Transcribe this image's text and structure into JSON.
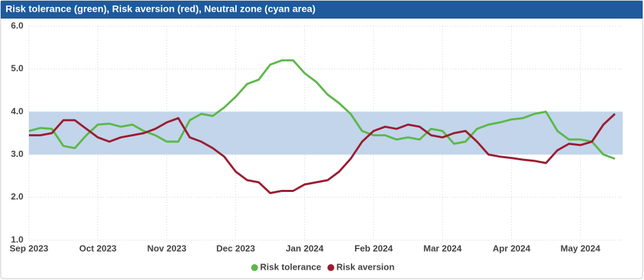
{
  "chart_data": {
    "type": "line",
    "title": "Risk tolerance (green), Risk aversion (red), Neutral zone (cyan area)",
    "categories": [
      "Sep 2023",
      null,
      null,
      null,
      null,
      null,
      "Oct 2023",
      null,
      null,
      null,
      null,
      null,
      "Nov 2023",
      null,
      null,
      null,
      null,
      null,
      "Dec 2023",
      null,
      null,
      null,
      null,
      null,
      "Jan 2024",
      null,
      null,
      null,
      null,
      null,
      "Feb 2024",
      null,
      null,
      null,
      null,
      null,
      "Mar 2024",
      null,
      null,
      null,
      null,
      null,
      "Apr 2024",
      null,
      null,
      null,
      null,
      null,
      "May 2024",
      null,
      null,
      null
    ],
    "series": [
      {
        "name": "Risk tolerance",
        "color": "#5cb848",
        "values": [
          3.55,
          3.62,
          3.6,
          3.2,
          3.15,
          3.45,
          3.7,
          3.72,
          3.65,
          3.7,
          3.55,
          3.45,
          3.3,
          3.3,
          3.8,
          3.95,
          3.9,
          4.1,
          4.35,
          4.65,
          4.75,
          5.1,
          5.2,
          5.2,
          4.9,
          4.7,
          4.4,
          4.2,
          3.95,
          3.55,
          3.45,
          3.45,
          3.35,
          3.4,
          3.35,
          3.6,
          3.55,
          3.25,
          3.3,
          3.6,
          3.7,
          3.75,
          3.82,
          3.85,
          3.95,
          4.0,
          3.55,
          3.35,
          3.35,
          3.3,
          3.0,
          2.9
        ]
      },
      {
        "name": "Risk aversion",
        "color": "#9b1c31",
        "values": [
          3.45,
          3.45,
          3.5,
          3.8,
          3.8,
          3.6,
          3.4,
          3.3,
          3.4,
          3.45,
          3.5,
          3.6,
          3.75,
          3.85,
          3.4,
          3.3,
          3.15,
          2.95,
          2.6,
          2.4,
          2.35,
          2.1,
          2.15,
          2.15,
          2.3,
          2.35,
          2.4,
          2.6,
          2.9,
          3.3,
          3.55,
          3.65,
          3.6,
          3.7,
          3.65,
          3.45,
          3.4,
          3.5,
          3.55,
          3.3,
          3.0,
          2.95,
          2.92,
          2.88,
          2.85,
          2.8,
          3.1,
          3.25,
          3.22,
          3.3,
          3.7,
          3.95
        ]
      }
    ],
    "band": [
      3,
      4
    ],
    "band_color": "#c2d5ea",
    "ylim": [
      1,
      6
    ],
    "yticks": [
      {
        "value": 1,
        "label": "1.0"
      },
      {
        "value": 2,
        "label": "2.0"
      },
      {
        "value": 3,
        "label": "3.0"
      },
      {
        "value": 4,
        "label": "4.0"
      },
      {
        "value": 5,
        "label": "5.0"
      },
      {
        "value": 6,
        "label": "6.0"
      }
    ],
    "grid": true,
    "legend": "bottom"
  }
}
